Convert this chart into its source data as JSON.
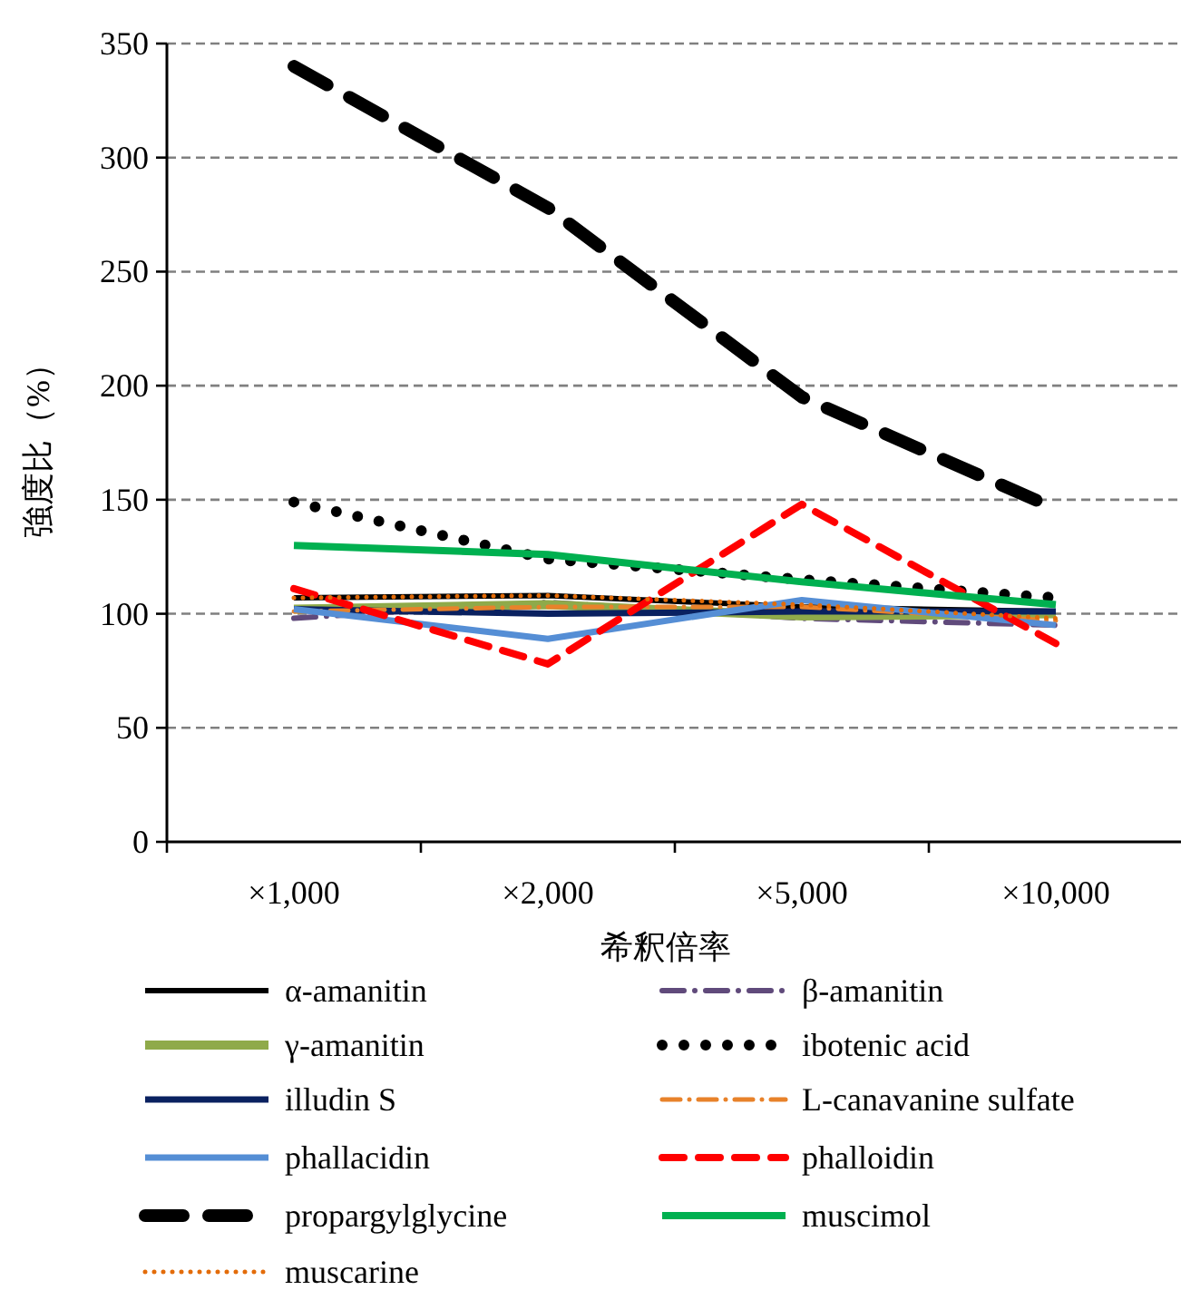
{
  "chart_data": {
    "type": "line",
    "xlabel": "希釈倍率",
    "ylabel": "強度比（%）",
    "categories": [
      "×1,000",
      "×2,000",
      "×5,000",
      "×10,000"
    ],
    "ylim": [
      0,
      350
    ],
    "yticks": [
      0,
      50,
      100,
      150,
      200,
      250,
      300,
      350
    ],
    "grid": "y",
    "legend": "bottom",
    "marker": "none",
    "series": [
      {
        "name": "α-amanitin",
        "color": "#000000",
        "line_style": "solid",
        "values": [
          107,
          108,
          103,
          101
        ]
      },
      {
        "name": "β-amanitin",
        "color": "#604a7b",
        "line_style": "dashdot",
        "values": [
          98,
          105,
          98,
          95
        ]
      },
      {
        "name": "γ-amanitin",
        "color": "#8faa4a",
        "line_style": "solid",
        "values": [
          102,
          104,
          99,
          100
        ]
      },
      {
        "name": "ibotenic acid",
        "color": "#000000",
        "line_style": "dotted",
        "values": [
          149,
          124,
          115,
          107
        ]
      },
      {
        "name": "illudin S",
        "color": "#0a2160",
        "line_style": "solid",
        "values": [
          102,
          100,
          101,
          101
        ]
      },
      {
        "name": "L-canavanine sulfate",
        "color": "#e8822a",
        "line_style": "dashdot",
        "values": [
          101,
          103,
          103,
          97
        ]
      },
      {
        "name": "phallacidin",
        "color": "#558ed5",
        "line_style": "solid",
        "values": [
          102,
          89,
          106,
          95
        ]
      },
      {
        "name": "phalloidin",
        "color": "#ff0000",
        "line_style": "dashed",
        "values": [
          111,
          78,
          148,
          87
        ]
      },
      {
        "name": "propargylglycine",
        "color": "#000000",
        "line_style": "dashed",
        "values": [
          340,
          278,
          195,
          146
        ]
      },
      {
        "name": "muscimol",
        "color": "#00b050",
        "line_style": "solid",
        "values": [
          130,
          126,
          114,
          104
        ]
      },
      {
        "name": "muscarine",
        "color": "#e36c09",
        "line_style": "dotted",
        "values": [
          107,
          108,
          104,
          98
        ]
      }
    ]
  }
}
